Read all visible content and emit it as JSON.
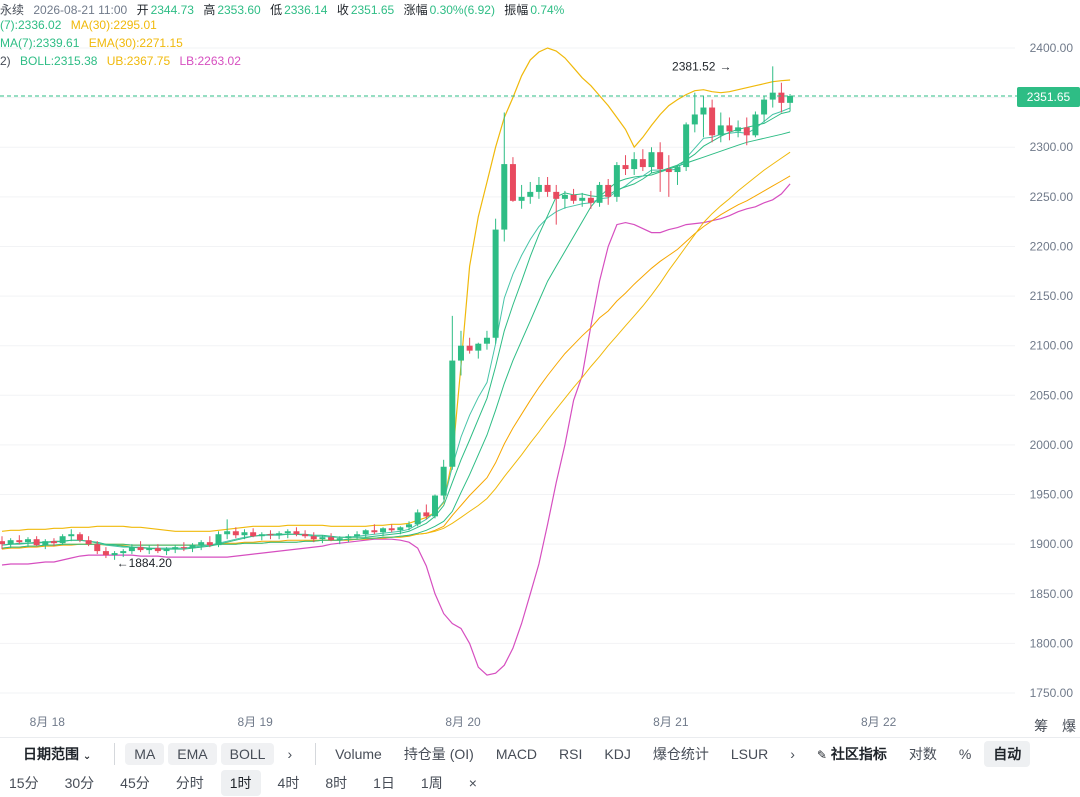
{
  "header": {
    "line1": {
      "name": "永续",
      "datetime": "2026-08-21 11:00",
      "open_label": "开",
      "open": "2344.73",
      "high_label": "高",
      "high": "2353.60",
      "low_label": "低",
      "low": "2336.14",
      "close_label": "收",
      "close": "2351.65",
      "change_label": "涨幅",
      "change": "0.30%(6.92)",
      "amp_label": "振幅",
      "amp": "0.74%"
    },
    "line2": {
      "ma7": "(7):2336.02",
      "ma30": "MA(30):2295.01"
    },
    "line3": {
      "ema7": "MA(7):2339.61",
      "ema30": "EMA(30):2271.15"
    },
    "line4": {
      "prefix": "2)",
      "boll": "BOLL:2315.38",
      "ub": "UB:2367.75",
      "lb": "LB:2263.02"
    }
  },
  "colors": {
    "up": "#2ebd85",
    "down": "#e84a5f",
    "ma7": "#2ebd85",
    "ma30": "#f0b90b",
    "ema7": "#47c4a8",
    "ema30": "#f7a600",
    "boll_mid": "#2ebd85",
    "ub": "#f0b90b",
    "lb": "#d64fc0",
    "grid": "#f2f3f5",
    "axis_text": "#707a8a"
  },
  "chart_data": {
    "type": "candlestick",
    "y_ticks": [
      "2400.00",
      "2350.00",
      "2300.00",
      "2250.00",
      "2200.00",
      "2150.00",
      "2100.00",
      "2050.00",
      "2000.00",
      "1950.00",
      "1900.00",
      "1850.00",
      "1800.00",
      "1750.00"
    ],
    "ylim": [
      1725,
      2420
    ],
    "x_ticks": [
      {
        "label": "8月 18",
        "index": 2
      },
      {
        "label": "8月 19",
        "index": 26
      },
      {
        "label": "8月 20",
        "index": 50
      },
      {
        "label": "8月 21",
        "index": 74
      },
      {
        "label": "8月 22",
        "index": 98
      }
    ],
    "current_price": "2351.65",
    "max_annotation": {
      "text": "2381.52",
      "index": 84,
      "value": 2381.52
    },
    "min_annotation": {
      "text": "1884.20",
      "index": 13,
      "value": 1884.2
    },
    "candles": [
      [
        1903,
        1908,
        1895,
        1900
      ],
      [
        1900,
        1906,
        1896,
        1904
      ],
      [
        1904,
        1909,
        1900,
        1902
      ],
      [
        1902,
        1907,
        1897,
        1905
      ],
      [
        1905,
        1908,
        1898,
        1899
      ],
      [
        1899,
        1905,
        1895,
        1903
      ],
      [
        1903,
        1906,
        1898,
        1901
      ],
      [
        1901,
        1910,
        1899,
        1908
      ],
      [
        1908,
        1915,
        1903,
        1910
      ],
      [
        1910,
        1912,
        1902,
        1904
      ],
      [
        1904,
        1908,
        1898,
        1900
      ],
      [
        1900,
        1903,
        1890,
        1893
      ],
      [
        1893,
        1897,
        1886,
        1889
      ],
      [
        1889,
        1893,
        1884.2,
        1891
      ],
      [
        1891,
        1895,
        1887,
        1893
      ],
      [
        1893,
        1900,
        1890,
        1897
      ],
      [
        1897,
        1903,
        1892,
        1894
      ],
      [
        1894,
        1899,
        1890,
        1896
      ],
      [
        1896,
        1900,
        1891,
        1893
      ],
      [
        1893,
        1897,
        1889,
        1895
      ],
      [
        1895,
        1899,
        1891,
        1897
      ],
      [
        1897,
        1902,
        1893,
        1896
      ],
      [
        1896,
        1901,
        1892,
        1899
      ],
      [
        1899,
        1904,
        1894,
        1902
      ],
      [
        1902,
        1908,
        1897,
        1899
      ],
      [
        1899,
        1913,
        1897,
        1910
      ],
      [
        1910,
        1925,
        1905,
        1913
      ],
      [
        1913,
        1917,
        1906,
        1909
      ],
      [
        1909,
        1915,
        1905,
        1912
      ],
      [
        1912,
        1916,
        1907,
        1908
      ],
      [
        1908,
        1912,
        1904,
        1910
      ],
      [
        1910,
        1914,
        1905,
        1909
      ],
      [
        1909,
        1913,
        1905,
        1911
      ],
      [
        1911,
        1915,
        1906,
        1913
      ],
      [
        1913,
        1917,
        1908,
        1910
      ],
      [
        1910,
        1914,
        1906,
        1908
      ],
      [
        1908,
        1912,
        1902,
        1905
      ],
      [
        1905,
        1909,
        1901,
        1907
      ],
      [
        1907,
        1911,
        1903,
        1904
      ],
      [
        1904,
        1908,
        1900,
        1906
      ],
      [
        1906,
        1910,
        1902,
        1908
      ],
      [
        1908,
        1913,
        1905,
        1910
      ],
      [
        1910,
        1915,
        1906,
        1914
      ],
      [
        1914,
        1920,
        1910,
        1912
      ],
      [
        1912,
        1917,
        1908,
        1916
      ],
      [
        1916,
        1920,
        1912,
        1914
      ],
      [
        1914,
        1918,
        1910,
        1917
      ],
      [
        1917,
        1923,
        1914,
        1920
      ],
      [
        1920,
        1935,
        1918,
        1932
      ],
      [
        1932,
        1940,
        1925,
        1928
      ],
      [
        1928,
        1950,
        1926,
        1949
      ],
      [
        1949,
        1985,
        1945,
        1978
      ],
      [
        1978,
        2130,
        1975,
        2085
      ],
      [
        2085,
        2115,
        2070,
        2100
      ],
      [
        2100,
        2108,
        2092,
        2095
      ],
      [
        2095,
        2103,
        2087,
        2102
      ],
      [
        2102,
        2115,
        2096,
        2108
      ],
      [
        2108,
        2228,
        2102,
        2217
      ],
      [
        2217,
        2335,
        2205,
        2283
      ],
      [
        2283,
        2290,
        2245,
        2246
      ],
      [
        2246,
        2262,
        2238,
        2250
      ],
      [
        2250,
        2265,
        2243,
        2255
      ],
      [
        2255,
        2270,
        2248,
        2262
      ],
      [
        2262,
        2270,
        2250,
        2255
      ],
      [
        2255,
        2262,
        2222,
        2248
      ],
      [
        2248,
        2256,
        2238,
        2252
      ],
      [
        2252,
        2258,
        2243,
        2246
      ],
      [
        2246,
        2254,
        2240,
        2249
      ],
      [
        2249,
        2256,
        2238,
        2244
      ],
      [
        2244,
        2265,
        2240,
        2262
      ],
      [
        2262,
        2268,
        2242,
        2250
      ],
      [
        2250,
        2285,
        2245,
        2282
      ],
      [
        2282,
        2292,
        2272,
        2278
      ],
      [
        2278,
        2295,
        2272,
        2288
      ],
      [
        2288,
        2298,
        2276,
        2280
      ],
      [
        2280,
        2300,
        2274,
        2295
      ],
      [
        2295,
        2305,
        2255,
        2278
      ],
      [
        2278,
        2292,
        2250,
        2275
      ],
      [
        2275,
        2282,
        2262,
        2280
      ],
      [
        2280,
        2325,
        2276,
        2323
      ],
      [
        2323,
        2355,
        2315,
        2333
      ],
      [
        2333,
        2352,
        2310,
        2340
      ],
      [
        2340,
        2348,
        2305,
        2312
      ],
      [
        2312,
        2335,
        2305,
        2322
      ],
      [
        2322,
        2330,
        2307,
        2316
      ],
      [
        2316,
        2327,
        2310,
        2320
      ],
      [
        2320,
        2330,
        2302,
        2312
      ],
      [
        2312,
        2336,
        2310,
        2333
      ],
      [
        2333,
        2352,
        2325,
        2348
      ],
      [
        2348,
        2381.52,
        2340,
        2355
      ],
      [
        2355,
        2365,
        2335,
        2344.73
      ],
      [
        2344.73,
        2353.6,
        2336.14,
        2351.65
      ]
    ],
    "series": {
      "MA7": [
        1899,
        1900,
        1901,
        1901,
        1902,
        1902,
        1903,
        1903,
        1904,
        1904,
        1903,
        1902,
        1900,
        1899,
        1898,
        1897,
        1896,
        1896,
        1895,
        1895,
        1895,
        1895,
        1896,
        1897,
        1898,
        1900,
        1902,
        1904,
        1906,
        1908,
        1909,
        1910,
        1910,
        1910,
        1910,
        1910,
        1909,
        1909,
        1908,
        1907,
        1907,
        1907,
        1907,
        1908,
        1909,
        1910,
        1911,
        1913,
        1917,
        1921,
        1928,
        1939,
        1962,
        1985,
        2005,
        2026,
        2047,
        2079,
        2115,
        2141,
        2165,
        2190,
        2212,
        2231,
        2250,
        2254,
        2252,
        2253,
        2251,
        2250,
        2252,
        2257,
        2260,
        2263,
        2268,
        2274,
        2276,
        2279,
        2282,
        2287,
        2293,
        2301,
        2306,
        2311,
        2315,
        2318,
        2320,
        2322,
        2324,
        2329,
        2334,
        2336.02
      ],
      "MA30": [
        1896,
        1897,
        1897,
        1898,
        1898,
        1899,
        1899,
        1900,
        1900,
        1900,
        1900,
        1900,
        1900,
        1900,
        1900,
        1899,
        1899,
        1899,
        1899,
        1899,
        1899,
        1899,
        1899,
        1899,
        1899,
        1900,
        1900,
        1900,
        1901,
        1901,
        1901,
        1902,
        1902,
        1902,
        1902,
        1903,
        1903,
        1904,
        1904,
        1904,
        1905,
        1905,
        1906,
        1906,
        1907,
        1907,
        1908,
        1909,
        1910,
        1911,
        1913,
        1916,
        1921,
        1927,
        1933,
        1939,
        1946,
        1956,
        1968,
        1979,
        1990,
        2002,
        2013,
        2025,
        2036,
        2047,
        2058,
        2068,
        2079,
        2089,
        2100,
        2110,
        2120,
        2130,
        2140,
        2151,
        2163,
        2176,
        2188,
        2200,
        2212,
        2224,
        2233,
        2241,
        2248,
        2256,
        2263,
        2270,
        2277,
        2283,
        2289,
        2295.01
      ],
      "EMA7": [
        1899,
        1900,
        1900,
        1901,
        1901,
        1902,
        1902,
        1903,
        1904,
        1904,
        1903,
        1901,
        1899,
        1898,
        1897,
        1897,
        1897,
        1896,
        1896,
        1896,
        1896,
        1896,
        1897,
        1898,
        1899,
        1901,
        1903,
        1905,
        1907,
        1908,
        1909,
        1909,
        1909,
        1910,
        1910,
        1909,
        1908,
        1908,
        1907,
        1907,
        1907,
        1908,
        1909,
        1910,
        1911,
        1912,
        1913,
        1915,
        1920,
        1925,
        1932,
        1943,
        1978,
        2008,
        2030,
        2048,
        2063,
        2102,
        2148,
        2172,
        2191,
        2207,
        2220,
        2229,
        2235,
        2239,
        2241,
        2243,
        2244,
        2248,
        2249,
        2256,
        2261,
        2268,
        2271,
        2277,
        2277,
        2277,
        2278,
        2289,
        2299,
        2309,
        2310,
        2313,
        2314,
        2315,
        2314,
        2319,
        2326,
        2333,
        2336,
        2339.61
      ],
      "EMA30": [
        1895,
        1896,
        1896,
        1897,
        1897,
        1898,
        1898,
        1899,
        1899,
        1900,
        1900,
        1900,
        1899,
        1899,
        1899,
        1899,
        1899,
        1899,
        1899,
        1899,
        1899,
        1899,
        1899,
        1899,
        1899,
        1900,
        1901,
        1901,
        1902,
        1902,
        1903,
        1903,
        1903,
        1904,
        1904,
        1904,
        1904,
        1904,
        1904,
        1904,
        1904,
        1905,
        1905,
        1906,
        1906,
        1907,
        1907,
        1908,
        1910,
        1911,
        1914,
        1918,
        1929,
        1939,
        1949,
        1958,
        1967,
        1982,
        2001,
        2017,
        2031,
        2045,
        2058,
        2070,
        2081,
        2092,
        2101,
        2110,
        2118,
        2128,
        2135,
        2145,
        2153,
        2162,
        2170,
        2178,
        2185,
        2191,
        2197,
        2205,
        2213,
        2220,
        2226,
        2232,
        2237,
        2242,
        2246,
        2251,
        2256,
        2261,
        2266,
        2271.15
      ],
      "BOLL_UB": [
        1913,
        1914,
        1914,
        1915,
        1915,
        1915,
        1916,
        1916,
        1917,
        1917,
        1917,
        1918,
        1918,
        1918,
        1918,
        1917,
        1917,
        1916,
        1915,
        1914,
        1913,
        1913,
        1913,
        1913,
        1913,
        1914,
        1915,
        1916,
        1917,
        1918,
        1918,
        1918,
        1918,
        1919,
        1919,
        1919,
        1919,
        1919,
        1918,
        1918,
        1918,
        1918,
        1918,
        1919,
        1919,
        1920,
        1920,
        1921,
        1924,
        1927,
        1932,
        1942,
        1985,
        2080,
        2180,
        2230,
        2265,
        2300,
        2330,
        2350,
        2372,
        2388,
        2396,
        2400,
        2397,
        2390,
        2380,
        2370,
        2362,
        2352,
        2342,
        2330,
        2318,
        2300,
        2310,
        2322,
        2333,
        2342,
        2348,
        2353,
        2357,
        2358,
        2356,
        2355,
        2356,
        2358,
        2360,
        2362,
        2364,
        2366,
        2367,
        2367.75
      ],
      "BOLL_MID": [
        1896,
        1897,
        1897,
        1898,
        1898,
        1899,
        1899,
        1900,
        1900,
        1900,
        1900,
        1900,
        1900,
        1900,
        1900,
        1899,
        1899,
        1899,
        1899,
        1899,
        1899,
        1899,
        1899,
        1899,
        1899,
        1900,
        1900,
        1900,
        1901,
        1901,
        1901,
        1902,
        1902,
        1902,
        1902,
        1903,
        1903,
        1904,
        1904,
        1904,
        1905,
        1905,
        1906,
        1906,
        1907,
        1907,
        1908,
        1909,
        1911,
        1914,
        1918,
        1923,
        1933,
        1952,
        1970,
        1990,
        2010,
        2035,
        2062,
        2085,
        2105,
        2125,
        2145,
        2165,
        2180,
        2195,
        2210,
        2225,
        2240,
        2250,
        2258,
        2265,
        2268,
        2270,
        2271,
        2272,
        2275,
        2278,
        2281,
        2284,
        2287,
        2290,
        2293,
        2296,
        2299,
        2302,
        2305,
        2307,
        2309,
        2311,
        2313,
        2315.38
      ],
      "BOLL_LB": [
        1879,
        1880,
        1880,
        1880,
        1881,
        1882,
        1882,
        1884,
        1886,
        1888,
        1889,
        1889,
        1889,
        1889,
        1889,
        1889,
        1888,
        1888,
        1888,
        1887,
        1887,
        1887,
        1887,
        1887,
        1887,
        1887,
        1887,
        1888,
        1889,
        1890,
        1891,
        1892,
        1893,
        1894,
        1895,
        1896,
        1897,
        1898,
        1900,
        1901,
        1902,
        1903,
        1904,
        1905,
        1905,
        1905,
        1904,
        1902,
        1896,
        1878,
        1850,
        1830,
        1820,
        1815,
        1800,
        1776,
        1768,
        1770,
        1778,
        1795,
        1820,
        1850,
        1880,
        1920,
        1962,
        2000,
        2045,
        2070,
        2120,
        2165,
        2200,
        2222,
        2224,
        2222,
        2218,
        2214,
        2214,
        2217,
        2219,
        2222,
        2223,
        2224,
        2226,
        2228,
        2231,
        2235,
        2238,
        2240,
        2244,
        2247,
        2253,
        2263.02
      ]
    }
  },
  "toolbar": {
    "date_range": "日期范围",
    "indicators_main": [
      "MA",
      "EMA",
      "BOLL"
    ],
    "indicators_sub": [
      "Volume",
      "持仓量 (OI)",
      "MACD",
      "RSI",
      "KDJ",
      "爆仓统计",
      "LSUR"
    ],
    "community": "社区指标",
    "log": "对数",
    "percent": "%",
    "auto": "自动"
  },
  "intervals": [
    "15分",
    "30分",
    "45分",
    "分时",
    "1时",
    "4时",
    "8时",
    "1日",
    "1周"
  ],
  "active_interval": "1时",
  "corner_text": [
    "筹",
    "爆"
  ]
}
